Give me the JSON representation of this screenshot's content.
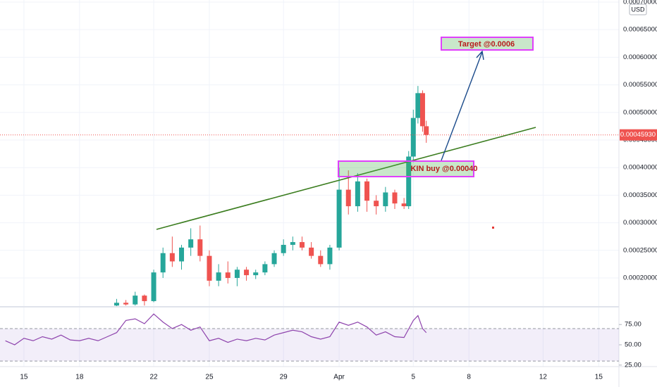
{
  "chart_data": [
    {
      "type": "candlestick",
      "unit": "USD",
      "x": [
        20,
        20.5,
        21,
        21.5,
        22,
        22.5,
        23,
        23.5,
        24,
        24.5,
        25,
        25.5,
        26,
        26.5,
        27,
        27.5,
        28,
        28.5,
        29,
        29.5,
        30,
        30.5,
        31,
        31.5,
        32,
        32.5,
        33,
        33.5,
        34,
        34.5,
        35,
        35.5,
        35.75,
        36,
        36.25,
        36.5,
        36.7
      ],
      "open": [
        0.00015,
        0.000155,
        0.000152,
        0.000168,
        0.000158,
        0.00021,
        0.000245,
        0.00023,
        0.000255,
        0.00027,
        0.00024,
        0.000195,
        0.00021,
        0.0002,
        0.000215,
        0.000205,
        0.00021,
        0.000225,
        0.000245,
        0.00026,
        0.000265,
        0.000255,
        0.00024,
        0.000225,
        0.000255,
        0.00036,
        0.00033,
        0.000375,
        0.00034,
        0.00033,
        0.000355,
        0.000335,
        0.00033,
        0.00042,
        0.00049,
        0.000535,
        0.000475
      ],
      "high": [
        0.000162,
        0.00016,
        0.000175,
        0.00017,
        0.000215,
        0.000255,
        0.000275,
        0.00026,
        0.00029,
        0.000295,
        0.00025,
        0.000225,
        0.00023,
        0.00022,
        0.00022,
        0.000215,
        0.00023,
        0.00025,
        0.00027,
        0.000275,
        0.000275,
        0.000265,
        0.00025,
        0.00026,
        0.0004,
        0.000395,
        0.00039,
        0.00038,
        0.00035,
        0.000365,
        0.00036,
        0.000345,
        0.00043,
        0.000505,
        0.000548,
        0.00054,
        0.000485
      ],
      "low": [
        0.000149,
        0.00015,
        0.00015,
        0.00015,
        0.000156,
        0.0002,
        0.00022,
        0.000215,
        0.00024,
        0.00023,
        0.000185,
        0.000185,
        0.00019,
        0.000185,
        0.000195,
        0.000198,
        0.000205,
        0.00022,
        0.00024,
        0.00025,
        0.00025,
        0.000235,
        0.00022,
        0.000215,
        0.00025,
        0.000315,
        0.00032,
        0.00032,
        0.000315,
        0.00032,
        0.000325,
        0.000325,
        0.000325,
        0.00041,
        0.00048,
        0.000465,
        0.000445
      ],
      "close": [
        0.000155,
        0.000152,
        0.000168,
        0.000158,
        0.00021,
        0.000245,
        0.00023,
        0.000255,
        0.00027,
        0.00024,
        0.000195,
        0.00021,
        0.0002,
        0.000215,
        0.000205,
        0.00021,
        0.000225,
        0.000245,
        0.00026,
        0.000265,
        0.000255,
        0.00024,
        0.000225,
        0.000255,
        0.00036,
        0.00033,
        0.000375,
        0.00034,
        0.00033,
        0.000355,
        0.000335,
        0.00033,
        0.00042,
        0.00049,
        0.000535,
        0.000475,
        0.0004593
      ],
      "up_color": "#26a69a",
      "down_color": "#ef5350",
      "xlim": [
        13.71,
        47.09
      ],
      "xticks": [
        15,
        18,
        22,
        25,
        29,
        {
          "value": 32,
          "label": "Apr"
        },
        {
          "value": 36,
          "label": "5"
        },
        {
          "value": 39,
          "label": "8"
        },
        {
          "value": 43,
          "label": "12"
        },
        {
          "value": 46,
          "label": "15"
        }
      ],
      "ylim": [
        0.000149,
        0.0007038
      ],
      "yticks": [
        {
          "value": 0.0002,
          "label": "0.00020000"
        },
        {
          "value": 0.00025,
          "label": "0.00025000"
        },
        {
          "value": 0.0003,
          "label": "0.00030000"
        },
        {
          "value": 0.00035,
          "label": "0.00035000"
        },
        {
          "value": 0.0004,
          "label": "0.00040000"
        },
        {
          "value": 0.00045,
          "label": "0.00045000"
        },
        {
          "value": 0.0005,
          "label": "0.00050000"
        },
        {
          "value": 0.00055,
          "label": "0.00055000"
        },
        {
          "value": 0.0006,
          "label": "0.00060000"
        },
        {
          "value": 0.00065,
          "label": "0.00065000"
        },
        {
          "value": 0.0007,
          "label": "0.00070000"
        }
      ],
      "last_price": {
        "value": 0.0004593,
        "label": "0.00045930"
      },
      "annotations": [
        "KIN buy @0.00040",
        "Target @0.0006"
      ],
      "grid": true
    },
    {
      "type": "line",
      "color": "#8e44ad",
      "x": [
        14,
        14.5,
        15,
        15.5,
        16,
        16.5,
        17,
        17.5,
        18,
        18.5,
        19,
        19.5,
        20,
        20.5,
        21,
        21.5,
        22,
        22.5,
        23,
        23.5,
        24,
        24.5,
        25,
        25.5,
        26,
        26.5,
        27,
        27.5,
        28,
        28.5,
        29,
        29.5,
        30,
        30.5,
        31,
        31.5,
        32,
        32.5,
        33,
        33.5,
        34,
        34.5,
        35,
        35.5,
        36,
        36.25,
        36.5,
        36.7
      ],
      "values": [
        55,
        50,
        58,
        55,
        60,
        57,
        62,
        56,
        55,
        58,
        55,
        60,
        65,
        80,
        82,
        76,
        88,
        78,
        70,
        75,
        68,
        72,
        55,
        58,
        53,
        57,
        55,
        58,
        56,
        62,
        65,
        68,
        66,
        60,
        57,
        60,
        78,
        74,
        78,
        72,
        62,
        66,
        60,
        59,
        80,
        86,
        70,
        65
      ],
      "xlim": [
        13.71,
        47.09
      ],
      "ylim": [
        24,
        96
      ],
      "yticks": [
        {
          "value": 25,
          "label": "25.00"
        },
        {
          "value": 50,
          "label": "50.00"
        },
        {
          "value": 75,
          "label": "75.00"
        }
      ],
      "levels": [
        30,
        70
      ]
    }
  ]
}
